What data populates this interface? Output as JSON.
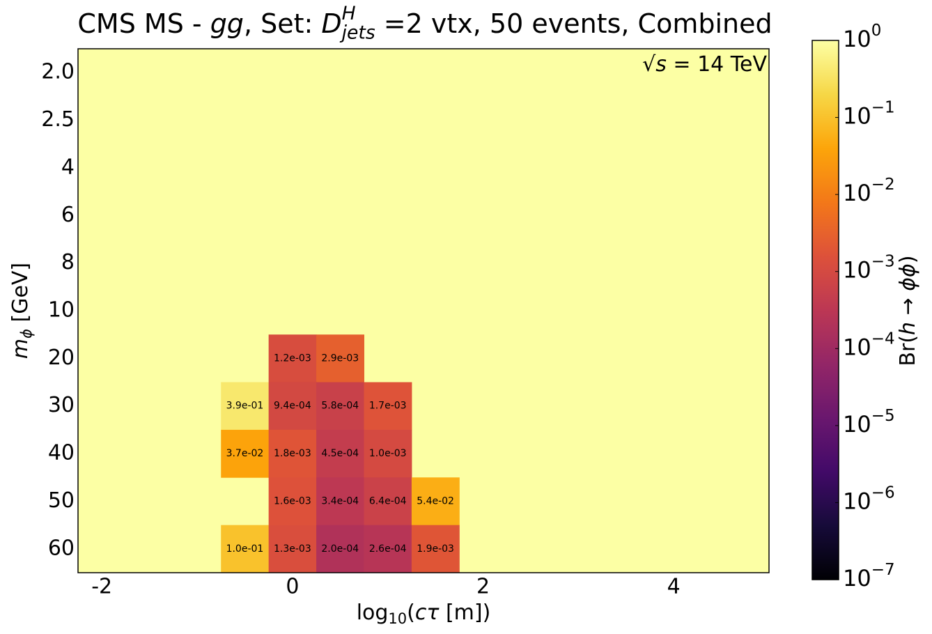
{
  "chart_data": {
    "type": "heatmap",
    "title_parts": [
      {
        "text": "CMS MS - "
      },
      {
        "text": "gg",
        "style": "italic"
      },
      {
        "text": ", Set: "
      },
      {
        "text": "D",
        "style": "italic"
      },
      {
        "text": "H",
        "style": "italic sup"
      },
      {
        "text": "jets",
        "style": "italic stacked-sub"
      },
      {
        "text": " =2 vtx, 50 events, Combined"
      }
    ],
    "annotation_parts": [
      {
        "text": "√"
      },
      {
        "text": "s",
        "style": "italic"
      },
      {
        "text": " = 14 TeV"
      }
    ],
    "x_label_parts": [
      {
        "text": "log"
      },
      {
        "text": "10",
        "style": "sub"
      },
      {
        "text": "("
      },
      {
        "text": "cτ",
        "style": "italic"
      },
      {
        "text": " [m])"
      }
    ],
    "y_label_parts": [
      {
        "text": "m",
        "style": "italic"
      },
      {
        "text": "ϕ",
        "style": "italic sub"
      },
      {
        "text": " [GeV]"
      }
    ],
    "colorbar_label_parts": [
      {
        "text": "Br("
      },
      {
        "text": "h",
        "style": "italic"
      },
      {
        "text": " → "
      },
      {
        "text": "ϕϕ",
        "style": "italic"
      },
      {
        "text": ")"
      }
    ],
    "categories": [
      "2.0",
      "2.5",
      "4",
      "6",
      "8",
      "10",
      "20",
      "30",
      "40",
      "50",
      "60"
    ],
    "xbins": [
      -0.75,
      -0.25,
      0.25,
      0.75,
      1.25,
      1.75
    ],
    "values": [
      [
        null,
        null,
        null,
        null,
        null
      ],
      [
        null,
        null,
        null,
        null,
        null
      ],
      [
        null,
        null,
        null,
        null,
        null
      ],
      [
        null,
        null,
        null,
        null,
        null
      ],
      [
        null,
        null,
        null,
        null,
        null
      ],
      [
        null,
        null,
        null,
        null,
        null
      ],
      [
        null,
        0.0012,
        0.0029,
        null,
        null
      ],
      [
        0.39,
        0.00094,
        0.00058,
        0.0017,
        null
      ],
      [
        0.037,
        0.0018,
        0.00045,
        0.001,
        null
      ],
      [
        null,
        0.0016,
        0.00034,
        0.00064,
        0.054
      ],
      [
        0.1,
        0.0013,
        0.0002,
        0.00026,
        0.0019
      ]
    ],
    "value_labels": [
      [
        null,
        null,
        null,
        null,
        null
      ],
      [
        null,
        null,
        null,
        null,
        null
      ],
      [
        null,
        null,
        null,
        null,
        null
      ],
      [
        null,
        null,
        null,
        null,
        null
      ],
      [
        null,
        null,
        null,
        null,
        null
      ],
      [
        null,
        null,
        null,
        null,
        null
      ],
      [
        null,
        "1.2e-03",
        "2.9e-03",
        null,
        null
      ],
      [
        "3.9e-01",
        "9.4e-04",
        "5.8e-04",
        "1.7e-03",
        null
      ],
      [
        "3.7e-02",
        "1.8e-03",
        "4.5e-04",
        "1.0e-03",
        null
      ],
      [
        null,
        "1.6e-03",
        "3.4e-04",
        "6.4e-04",
        "5.4e-02"
      ],
      [
        "1.0e-01",
        "1.3e-03",
        "2.0e-04",
        "2.6e-04",
        "1.9e-03"
      ]
    ],
    "xlim": [
      -2.25,
      5.0
    ],
    "xticks": [
      -2,
      0,
      2,
      4
    ],
    "zlim": [
      1e-07,
      1
    ],
    "zscale": "log",
    "colormap": "inferno",
    "zticks": [
      {
        "value": 1,
        "label": "10",
        "exponent": "0"
      },
      {
        "value": 0.1,
        "label": "10",
        "exponent": "−1"
      },
      {
        "value": 0.01,
        "label": "10",
        "exponent": "−2"
      },
      {
        "value": 0.001,
        "label": "10",
        "exponent": "−3"
      },
      {
        "value": 0.0001,
        "label": "10",
        "exponent": "−4"
      },
      {
        "value": 1e-05,
        "label": "10",
        "exponent": "−5"
      },
      {
        "value": 1e-06,
        "label": "10",
        "exponent": "−6"
      },
      {
        "value": 1e-07,
        "label": "10",
        "exponent": "−7"
      }
    ]
  }
}
